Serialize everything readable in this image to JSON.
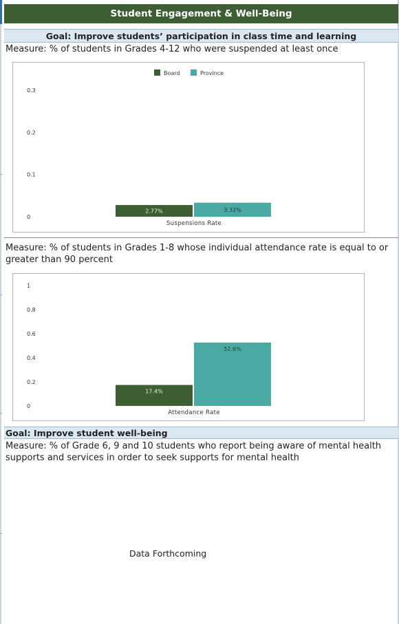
{
  "page": {
    "header": "Student Engagement & Well-Being",
    "goal1": "Goal: Improve students’ participation in class time and learning",
    "measure1": "Measure: % of students in Grades 4-12 who were suspended at least once",
    "measure2": "Measure: % of students in Grades 1-8 whose individual attendance rate is equal to or greater than 90 percent",
    "goal2": "Goal: Improve student well-being",
    "measure3": "Measure: % of Grade 6, 9 and 10 students who report being aware of mental health supports and services in order to seek supports for mental health",
    "forthcoming": "Data Forthcoming"
  },
  "colors": {
    "header_bg": "#3c5e32",
    "goal_bg": "#dbe8f2",
    "board": "#3c5e32",
    "province": "#4aa9a3"
  },
  "chart_data": [
    {
      "type": "bar",
      "categories": [
        "Suspensions Rate"
      ],
      "series": [
        {
          "name": "Board",
          "values": [
            0.0277
          ],
          "label": "2.77%"
        },
        {
          "name": "Province",
          "values": [
            0.0332
          ],
          "label": "3.32%"
        }
      ],
      "yticks": [
        "0",
        "0.1",
        "0.2",
        "0.3"
      ],
      "ylim": [
        0,
        0.3
      ],
      "legend": "top-center"
    },
    {
      "type": "bar",
      "categories": [
        "Attendance Rate"
      ],
      "series": [
        {
          "name": "Board",
          "values": [
            0.174
          ],
          "label": "17.4%"
        },
        {
          "name": "Province",
          "values": [
            0.526
          ],
          "label": "52.6%"
        }
      ],
      "yticks": [
        "0",
        "0.2",
        "0.4",
        "0.6",
        "0.8",
        "1"
      ],
      "ylim": [
        0,
        1
      ],
      "legend": "none"
    }
  ]
}
